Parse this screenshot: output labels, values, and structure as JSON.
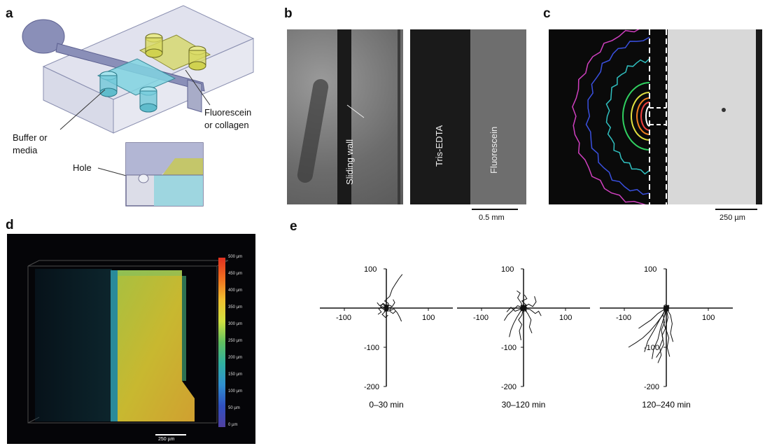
{
  "panels": {
    "a": {
      "label": "a",
      "annotations": {
        "fluorescein": [
          "Fluorescein",
          "or collagen"
        ],
        "buffer": [
          "Buffer or",
          "media"
        ],
        "hole": "Hole"
      }
    },
    "b": {
      "label": "b",
      "sliding_wall": "Sliding wall",
      "left_channel": "Tris-EDTA",
      "right_channel": "Fluorescein",
      "scale_label": "0.5 mm"
    },
    "c": {
      "label": "c",
      "scale_label": "250 µm",
      "contour_colors": [
        "#d040c0",
        "#3a50e0",
        "#30c0c0",
        "#30d060",
        "#e0e040",
        "#f08020",
        "#f04040",
        "#ffffff"
      ]
    },
    "d": {
      "label": "d",
      "scale_label": "250 µm",
      "colorbar_ticks": [
        "500 µm",
        "450 µm",
        "400 µm",
        "350 µm",
        "300 µm",
        "250 µm",
        "200 µm",
        "150 µm",
        "100 µm",
        "50 µm",
        "0 µm"
      ]
    },
    "e": {
      "label": "e"
    }
  },
  "chart_data": [
    {
      "type": "line",
      "title": "0–30 min",
      "xlim": [
        -100,
        100
      ],
      "ylim": [
        -200,
        100
      ],
      "xticks": [
        "-100",
        "100"
      ],
      "yticks": [
        "100",
        "-100",
        "-200"
      ],
      "tracks": [
        [
          [
            0,
            0
          ],
          [
            5,
            12
          ],
          [
            -4,
            18
          ],
          [
            8,
            30
          ],
          [
            14,
            48
          ],
          [
            22,
            62
          ],
          [
            30,
            75
          ],
          [
            38,
            86
          ]
        ],
        [
          [
            0,
            0
          ],
          [
            -10,
            4
          ],
          [
            -18,
            -2
          ],
          [
            -12,
            -10
          ],
          [
            -20,
            -16
          ]
        ],
        [
          [
            0,
            0
          ],
          [
            10,
            -6
          ],
          [
            18,
            -2
          ],
          [
            26,
            -12
          ],
          [
            32,
            -24
          ],
          [
            36,
            -34
          ]
        ],
        [
          [
            0,
            0
          ],
          [
            -4,
            -10
          ],
          [
            -10,
            -16
          ],
          [
            -2,
            -24
          ],
          [
            4,
            -18
          ]
        ],
        [
          [
            0,
            0
          ],
          [
            6,
            8
          ],
          [
            14,
            4
          ],
          [
            20,
            14
          ],
          [
            16,
            22
          ]
        ],
        [
          [
            0,
            0
          ],
          [
            -8,
            10
          ],
          [
            -16,
            6
          ],
          [
            -22,
            14
          ]
        ],
        [
          [
            0,
            0
          ],
          [
            12,
            2
          ],
          [
            8,
            -8
          ],
          [
            16,
            -14
          ],
          [
            22,
            -8
          ]
        ],
        [
          [
            0,
            0
          ],
          [
            -6,
            -4
          ],
          [
            -14,
            4
          ],
          [
            -8,
            12
          ],
          [
            -2,
            8
          ]
        ]
      ]
    },
    {
      "type": "line",
      "title": "30–120 min",
      "xlim": [
        -100,
        100
      ],
      "ylim": [
        -200,
        100
      ],
      "xticks": [
        "-100",
        "100"
      ],
      "yticks": [
        "100",
        "-100",
        "-200"
      ],
      "tracks": [
        [
          [
            0,
            0
          ],
          [
            -8,
            -10
          ],
          [
            -16,
            -24
          ],
          [
            -24,
            -40
          ],
          [
            -30,
            -56
          ],
          [
            -34,
            -74
          ]
        ],
        [
          [
            0,
            0
          ],
          [
            10,
            -14
          ],
          [
            18,
            -30
          ],
          [
            14,
            -48
          ],
          [
            20,
            -64
          ]
        ],
        [
          [
            0,
            0
          ],
          [
            -14,
            6
          ],
          [
            -26,
            -6
          ],
          [
            -38,
            -18
          ],
          [
            -46,
            -32
          ]
        ],
        [
          [
            0,
            0
          ],
          [
            12,
            10
          ],
          [
            22,
            4
          ],
          [
            30,
            16
          ],
          [
            26,
            30
          ]
        ],
        [
          [
            0,
            0
          ],
          [
            -6,
            14
          ],
          [
            -14,
            26
          ],
          [
            -8,
            38
          ],
          [
            -16,
            44
          ]
        ],
        [
          [
            0,
            0
          ],
          [
            16,
            -4
          ],
          [
            28,
            -14
          ],
          [
            36,
            -8
          ],
          [
            42,
            -20
          ]
        ],
        [
          [
            0,
            0
          ],
          [
            -4,
            -18
          ],
          [
            -12,
            -30
          ],
          [
            -4,
            -42
          ],
          [
            -10,
            -58
          ],
          [
            -6,
            -82
          ]
        ],
        [
          [
            0,
            0
          ],
          [
            6,
            8
          ],
          [
            -4,
            18
          ],
          [
            8,
            24
          ],
          [
            2,
            34
          ]
        ],
        [
          [
            0,
            0
          ],
          [
            -20,
            -8
          ],
          [
            -30,
            2
          ],
          [
            -40,
            -10
          ]
        ]
      ]
    },
    {
      "type": "line",
      "title": "120–240 min",
      "xlim": [
        -100,
        100
      ],
      "ylim": [
        -200,
        100
      ],
      "xticks": [
        "-100",
        "100"
      ],
      "yticks": [
        "100",
        "-100",
        "-200"
      ],
      "tracks": [
        [
          [
            0,
            0
          ],
          [
            -10,
            -20
          ],
          [
            -24,
            -40
          ],
          [
            -40,
            -60
          ],
          [
            -56,
            -76
          ],
          [
            -72,
            -88
          ],
          [
            -90,
            -100
          ]
        ],
        [
          [
            0,
            0
          ],
          [
            -6,
            -26
          ],
          [
            -14,
            -52
          ],
          [
            -20,
            -80
          ],
          [
            -30,
            -104
          ],
          [
            -34,
            -130
          ]
        ],
        [
          [
            0,
            0
          ],
          [
            -16,
            -30
          ],
          [
            -30,
            -58
          ],
          [
            -44,
            -84
          ],
          [
            -52,
            -112
          ]
        ],
        [
          [
            0,
            0
          ],
          [
            4,
            -24
          ],
          [
            -2,
            -50
          ],
          [
            6,
            -76
          ],
          [
            2,
            -100
          ],
          [
            8,
            -124
          ]
        ],
        [
          [
            0,
            0
          ],
          [
            -8,
            -16
          ],
          [
            -4,
            -36
          ],
          [
            -12,
            -56
          ],
          [
            -8,
            -78
          ],
          [
            -16,
            -100
          ],
          [
            -12,
            -120
          ],
          [
            -20,
            -140
          ]
        ],
        [
          [
            0,
            0
          ],
          [
            10,
            -18
          ],
          [
            14,
            -40
          ],
          [
            10,
            -64
          ],
          [
            16,
            -86
          ]
        ],
        [
          [
            0,
            0
          ],
          [
            -20,
            -14
          ],
          [
            -36,
            -30
          ],
          [
            -50,
            -40
          ],
          [
            -66,
            -52
          ]
        ],
        [
          [
            0,
            0
          ],
          [
            -2,
            -14
          ],
          [
            -8,
            -32
          ],
          [
            -2,
            -52
          ],
          [
            -10,
            -70
          ],
          [
            -6,
            -92
          ],
          [
            -14,
            -110
          ],
          [
            -24,
            -126
          ]
        ]
      ]
    }
  ]
}
